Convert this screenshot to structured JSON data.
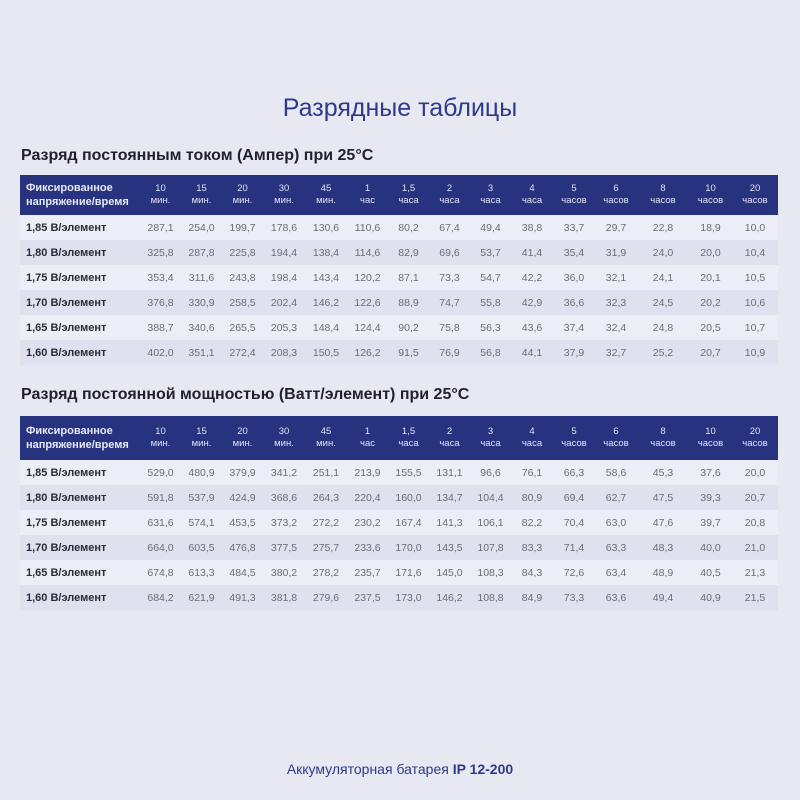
{
  "title": "Разрядные таблицы",
  "colors": {
    "accent": "#2d3a8c",
    "header_bg": "#28337f"
  },
  "header_label": "Фиксированное напряжение/время",
  "columns": [
    [
      "10",
      "мин."
    ],
    [
      "15",
      "мин."
    ],
    [
      "20",
      "мин."
    ],
    [
      "30",
      "мин."
    ],
    [
      "45",
      "мин."
    ],
    [
      "1",
      "час"
    ],
    [
      "1,5",
      "часа"
    ],
    [
      "2",
      "часа"
    ],
    [
      "3",
      "часа"
    ],
    [
      "4",
      "часа"
    ],
    [
      "5",
      "часов"
    ],
    [
      "6",
      "часов"
    ],
    [
      "8",
      "часов"
    ],
    [
      "10",
      "часов"
    ],
    [
      "20",
      "часов"
    ]
  ],
  "tables": [
    {
      "title": "Разряд постоянным током (Ампер) при 25°C",
      "rows": [
        {
          "label": "1,85 В/элемент",
          "values": [
            "287,1",
            "254,0",
            "199,7",
            "178,6",
            "130,6",
            "110,6",
            "80,2",
            "67,4",
            "49,4",
            "38,8",
            "33,7",
            "29,7",
            "22,8",
            "18,9",
            "10,0"
          ]
        },
        {
          "label": "1,80 В/элемент",
          "values": [
            "325,8",
            "287,8",
            "225,8",
            "194,4",
            "138,4",
            "114,6",
            "82,9",
            "69,6",
            "53,7",
            "41,4",
            "35,4",
            "31,9",
            "24,0",
            "20,0",
            "10,4"
          ]
        },
        {
          "label": "1,75 В/элемент",
          "values": [
            "353,4",
            "311,6",
            "243,8",
            "198,4",
            "143,4",
            "120,2",
            "87,1",
            "73,3",
            "54,7",
            "42,2",
            "36,0",
            "32,1",
            "24,1",
            "20,1",
            "10,5"
          ]
        },
        {
          "label": "1,70 В/элемент",
          "values": [
            "376,8",
            "330,9",
            "258,5",
            "202,4",
            "146,2",
            "122,6",
            "88,9",
            "74,7",
            "55,8",
            "42,9",
            "36,6",
            "32,3",
            "24,5",
            "20,2",
            "10,6"
          ]
        },
        {
          "label": "1,65 В/элемент",
          "values": [
            "388,7",
            "340,6",
            "265,5",
            "205,3",
            "148,4",
            "124,4",
            "90,2",
            "75,8",
            "56,3",
            "43,6",
            "37,4",
            "32,4",
            "24,8",
            "20,5",
            "10,7"
          ]
        },
        {
          "label": "1,60 В/элемент",
          "values": [
            "402,0",
            "351,1",
            "272,4",
            "208,3",
            "150,5",
            "126,2",
            "91,5",
            "76,9",
            "56,8",
            "44,1",
            "37,9",
            "32,7",
            "25,2",
            "20,7",
            "10,9"
          ]
        }
      ]
    },
    {
      "title": "Разряд постоянной мощностью (Ватт/элемент) при 25°C",
      "rows": [
        {
          "label": "1,85 В/элемент",
          "values": [
            "529,0",
            "480,9",
            "379,9",
            "341,2",
            "251,1",
            "213,9",
            "155,5",
            "131,1",
            "96,6",
            "76,1",
            "66,3",
            "58,6",
            "45,3",
            "37,6",
            "20,0"
          ]
        },
        {
          "label": "1,80 В/элемент",
          "values": [
            "591,8",
            "537,9",
            "424,9",
            "368,6",
            "264,3",
            "220,4",
            "160,0",
            "134,7",
            "104,4",
            "80,9",
            "69,4",
            "62,7",
            "47,5",
            "39,3",
            "20,7"
          ]
        },
        {
          "label": "1,75 В/элемент",
          "values": [
            "631,6",
            "574,1",
            "453,5",
            "373,2",
            "272,2",
            "230,2",
            "167,4",
            "141,3",
            "106,1",
            "82,2",
            "70,4",
            "63,0",
            "47,6",
            "39,7",
            "20,8"
          ]
        },
        {
          "label": "1,70 В/элемент",
          "values": [
            "664,0",
            "603,5",
            "476,8",
            "377,5",
            "275,7",
            "233,6",
            "170,0",
            "143,5",
            "107,8",
            "83,3",
            "71,4",
            "63,3",
            "48,3",
            "40,0",
            "21,0"
          ]
        },
        {
          "label": "1,65 В/элемент",
          "values": [
            "674,8",
            "613,3",
            "484,5",
            "380,2",
            "278,2",
            "235,7",
            "171,6",
            "145,0",
            "108,3",
            "84,3",
            "72,6",
            "63,4",
            "48,9",
            "40,5",
            "21,3"
          ]
        },
        {
          "label": "1,60 В/элемент",
          "values": [
            "684,2",
            "621,9",
            "491,3",
            "381,8",
            "279,6",
            "237,5",
            "173,0",
            "146,2",
            "108,8",
            "84,9",
            "73,3",
            "63,6",
            "49,4",
            "40,9",
            "21,5"
          ]
        }
      ]
    }
  ],
  "footer": {
    "text": "Аккумуляторная батарея ",
    "model": "IP 12-200"
  }
}
